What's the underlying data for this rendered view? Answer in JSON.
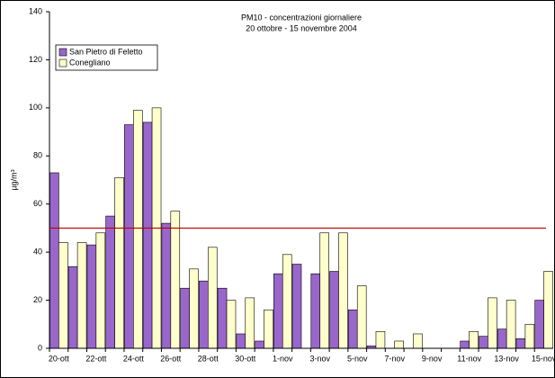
{
  "chart_data": {
    "type": "bar",
    "title": "PM10 - concentrazioni giornaliere",
    "subtitle": "20 ottobre - 15 novembre 2004",
    "y_label": "µg/m³",
    "categories": [
      "20-ott",
      null,
      "22-ott",
      null,
      "24-ott",
      null,
      "26-ott",
      null,
      "28-ott",
      null,
      "30-ott",
      null,
      "1-nov",
      null,
      "3-nov",
      null,
      "5-nov",
      null,
      "7-nov",
      null,
      "9-nov",
      null,
      "11-nov",
      null,
      "13-nov",
      null,
      "15-nov"
    ],
    "series": [
      {
        "name": "San Pietro di Feletto",
        "color": "#9966cc",
        "values": [
          73,
          34,
          43,
          55,
          93,
          94,
          52,
          25,
          28,
          25,
          6,
          3,
          31,
          35,
          31,
          32,
          16,
          1,
          null,
          null,
          null,
          null,
          3,
          5,
          8,
          4,
          20
        ]
      },
      {
        "name": "Conegliano",
        "color": "#ffffcc",
        "values": [
          44,
          44,
          48,
          71,
          99,
          100,
          57,
          33,
          42,
          20,
          21,
          16,
          39,
          null,
          48,
          48,
          26,
          7,
          3,
          6,
          null,
          null,
          7,
          21,
          20,
          10,
          32
        ]
      }
    ],
    "reference_line": {
      "value": 50,
      "color": "#c00000"
    },
    "ylim": [
      0,
      140
    ],
    "yticks": [
      0,
      20,
      40,
      60,
      80,
      100,
      120,
      140
    ],
    "legend": "top-left"
  }
}
